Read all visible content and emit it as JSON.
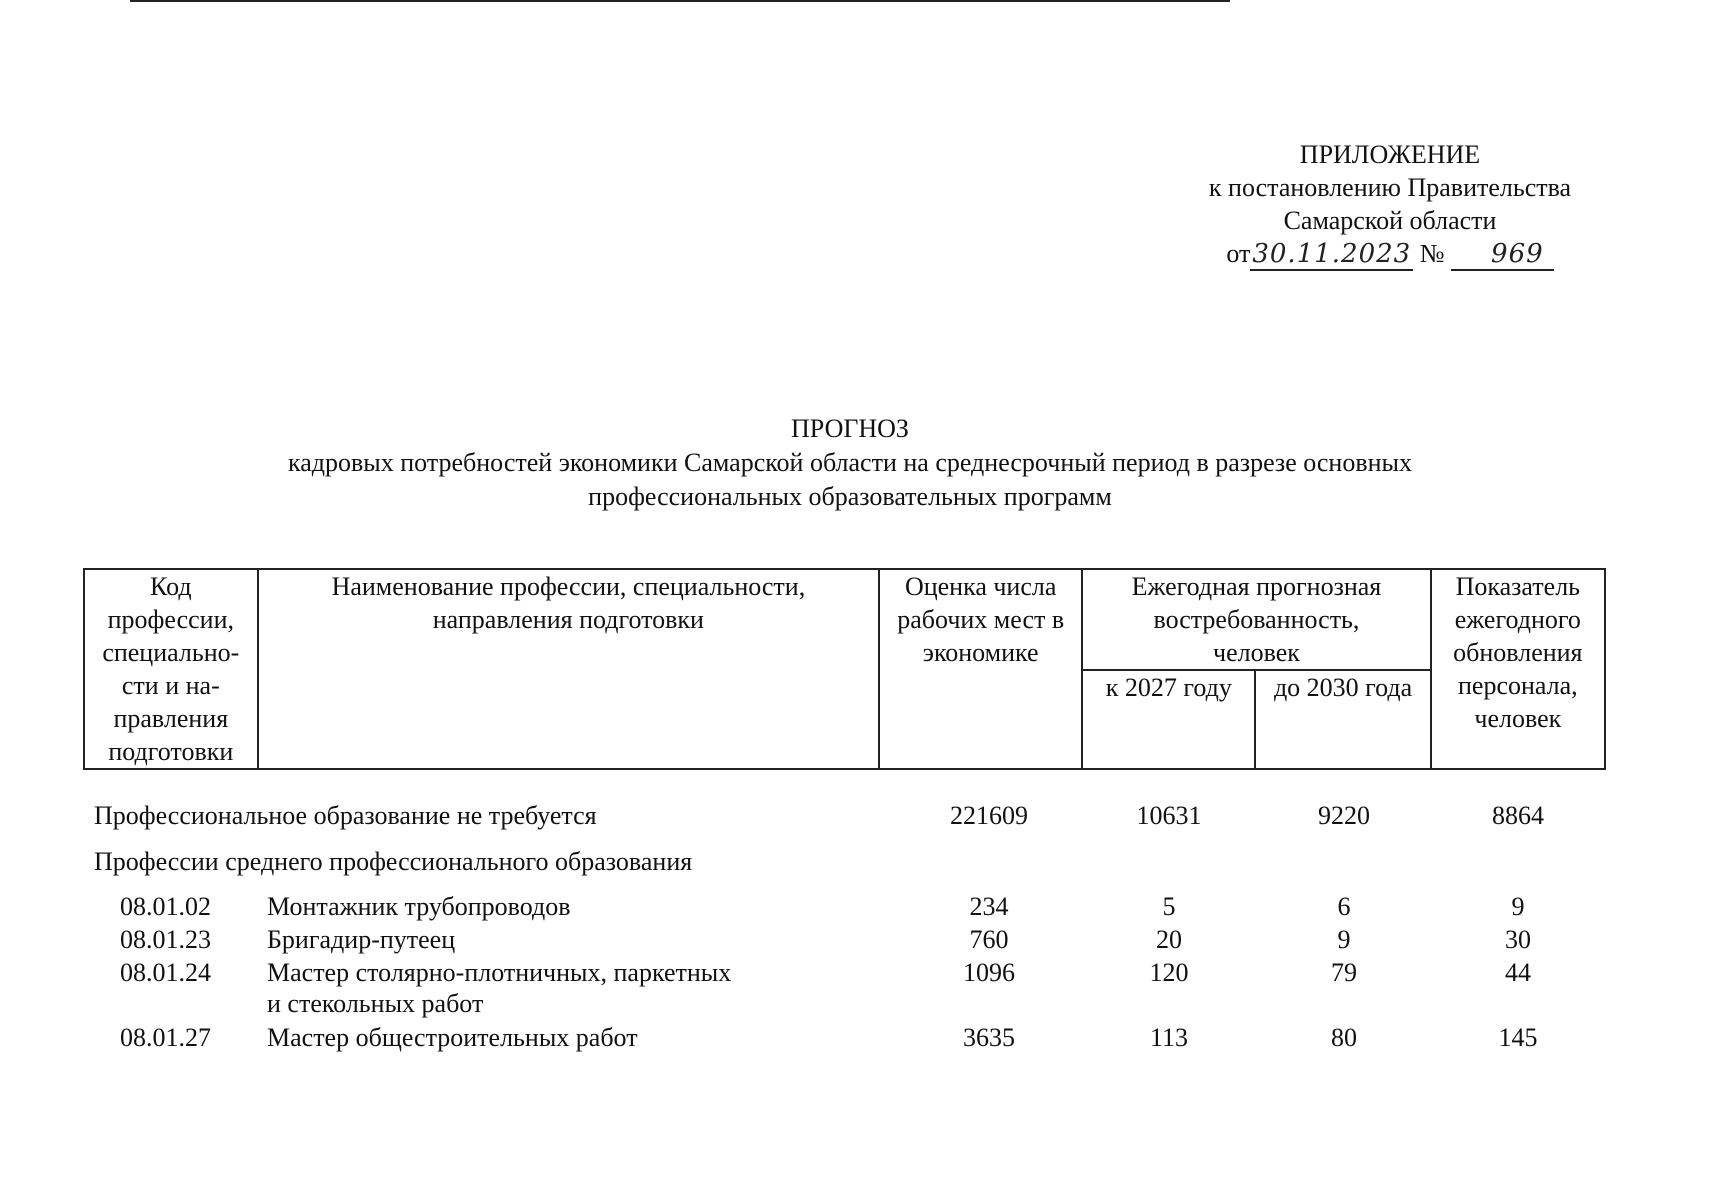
{
  "appendix": {
    "title": "ПРИЛОЖЕНИЕ",
    "line1": "к постановлению Правительства",
    "line2": "Самарской области",
    "from_label": "от",
    "date": "30.11.2023",
    "number_label": "№",
    "number": "969"
  },
  "document": {
    "title": "ПРОГНОЗ",
    "subtitle_line1": "кадровых потребностей экономики Самарской области на среднесрочный период в разрезе основных",
    "subtitle_line2": "профессиональных образовательных программ"
  },
  "table": {
    "headers": {
      "code": "Код профессии, специально-сти и на-правления подготовки",
      "name": "Наименование профессии, специальности, направления подготовки",
      "jobs": "Оценка числа рабочих мест в экономике",
      "demand": "Ежегодная прогнозная востребованность, человек",
      "demand_2027": "к 2027 году",
      "demand_2030": "до 2030 года",
      "renewal": "Показатель ежегодного обновления персонала, человек"
    },
    "summary_row": {
      "name": "Профессиональное образование не требуется",
      "jobs": "221609",
      "y2027": "10631",
      "y2030": "9220",
      "renewal": "8864"
    },
    "section_title": "Профессии среднего профессионального образования",
    "rows": [
      {
        "code": "08.01.02",
        "name": "Монтажник трубопроводов",
        "jobs": "234",
        "y2027": "5",
        "y2030": "6",
        "renewal": "9"
      },
      {
        "code": "08.01.23",
        "name": "Бригадир-путеец",
        "jobs": "760",
        "y2027": "20",
        "y2030": "9",
        "renewal": "30"
      },
      {
        "code": "08.01.24",
        "name": "Мастер столярно-плотничных, паркетных",
        "name_cont": "и стекольных работ",
        "jobs": "1096",
        "y2027": "120",
        "y2030": "79",
        "renewal": "44"
      },
      {
        "code": "08.01.27",
        "name": "Мастер общестроительных работ",
        "jobs": "3635",
        "y2027": "113",
        "y2030": "80",
        "renewal": "145"
      }
    ]
  }
}
